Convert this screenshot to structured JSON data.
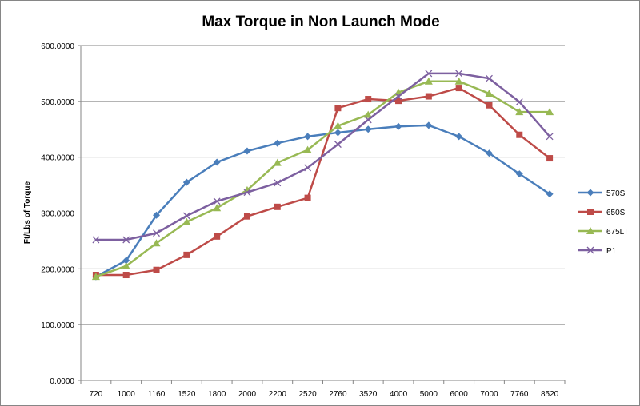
{
  "chart_data": {
    "type": "line",
    "title": "Max Torque in Non Launch Mode",
    "xlabel": "",
    "ylabel": "Ft/Lbs of Torque",
    "ylim": [
      0,
      600
    ],
    "yticks": [
      "0.0000",
      "100.0000",
      "200.0000",
      "300.0000",
      "400.0000",
      "500.0000",
      "600.0000"
    ],
    "grid": true,
    "legend_position": "right",
    "categories": [
      "720",
      "1000",
      "1160",
      "1520",
      "1800",
      "2000",
      "2200",
      "2520",
      "2760",
      "3520",
      "4000",
      "5000",
      "6000",
      "7000",
      "7760",
      "8520"
    ],
    "series": [
      {
        "name": "570S",
        "color": "#4a7ebb",
        "marker": "diamond",
        "values": [
          186,
          215,
          296,
          355,
          391,
          411,
          425,
          437,
          444,
          450,
          455,
          457,
          437,
          407,
          370,
          334
        ]
      },
      {
        "name": "650S",
        "color": "#be4b48",
        "marker": "square",
        "values": [
          189,
          189,
          198,
          225,
          258,
          294,
          311,
          327,
          488,
          504,
          501,
          509,
          524,
          493,
          440,
          398
        ]
      },
      {
        "name": "675LT",
        "color": "#98b954",
        "marker": "triangle",
        "values": [
          186,
          205,
          246,
          284,
          309,
          341,
          390,
          413,
          456,
          476,
          516,
          536,
          536,
          514,
          481,
          481
        ]
      },
      {
        "name": "P1",
        "color": "#7d60a0",
        "marker": "x",
        "values": [
          252,
          252,
          264,
          295,
          321,
          337,
          354,
          381,
          423,
          467,
          509,
          550,
          550,
          541,
          499,
          437
        ]
      }
    ]
  }
}
